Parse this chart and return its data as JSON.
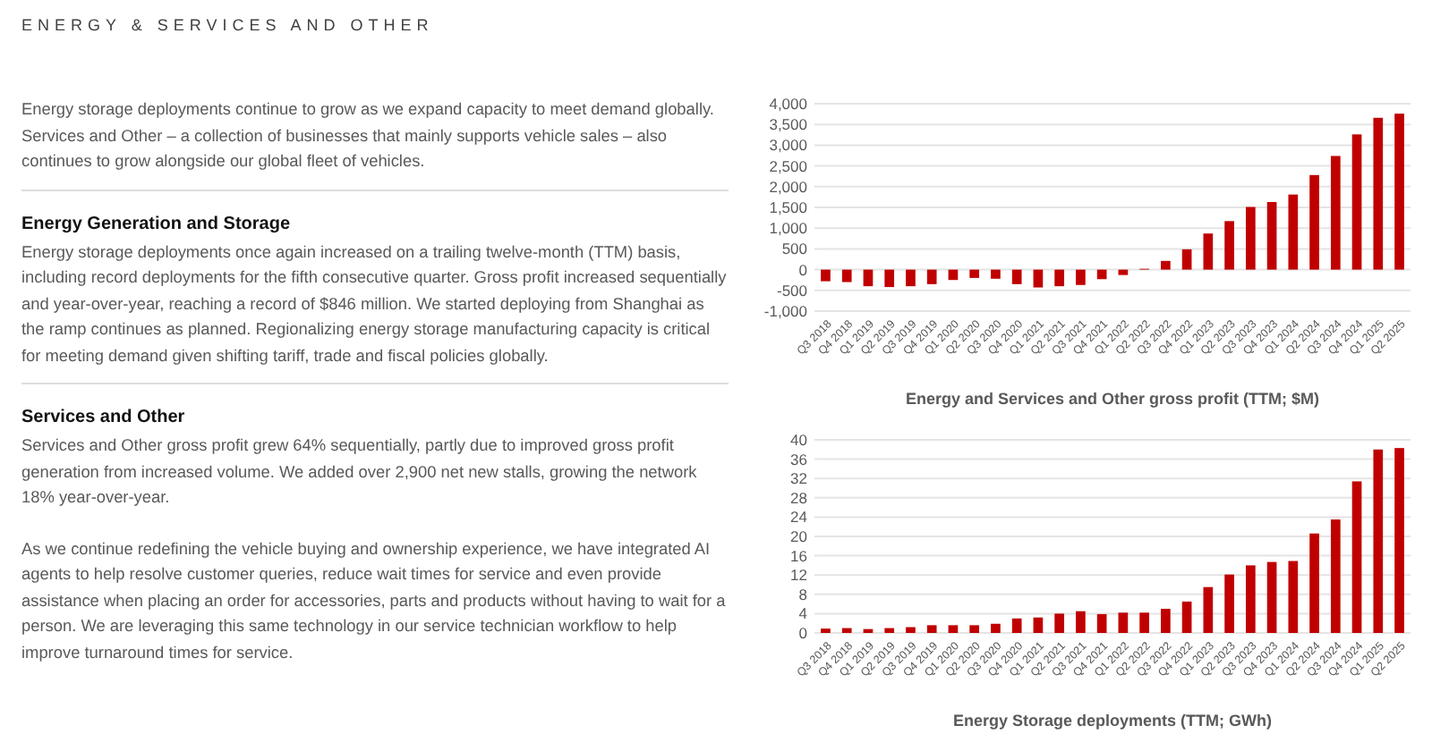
{
  "chart_data": [
    {
      "type": "other",
      "title": "ENERGY & SERVICES AND OTHER",
      "annotations": [
        "Energy storage deployments continue to grow as we expand capacity to meet demand globally. Services and Other – a collection of businesses that mainly supports vehicle sales – also continues to grow alongside our global fleet of vehicles.",
        "Energy Generation and Storage",
        "Energy storage deployments once again increased on a trailing twelve-month (TTM) basis, including record deployments for the fifth consecutive quarter. Gross profit increased sequentially and year-over-year, reaching a record of $846 million. We started deploying from Shanghai as the ramp continues as planned. Regionalizing energy storage manufacturing capacity is critical for meeting demand given shifting tariff, trade and fiscal policies globally.",
        "Services and Other",
        "Services and Other gross profit grew 64% sequentially, partly due to improved gross profit generation from increased volume. We added over 2,900 net new stalls, growing the network 18% year-over-year.",
        "As we continue redefining the vehicle buying and ownership experience, we have integrated AI agents to help resolve customer queries, reduce wait times for service and even provide assistance when placing an order for accessories, parts and products without having to wait for a person. We are leveraging this same technology in our service technician workflow to help improve turnaround times for service."
      ]
    },
    {
      "type": "bar",
      "title": "Energy and Services and Other gross profit (TTM; $M)",
      "categories": [
        "Q3 2018",
        "Q4 2018",
        "Q1 2019",
        "Q2 2019",
        "Q3 2019",
        "Q4 2019",
        "Q1 2020",
        "Q2 2020",
        "Q3 2020",
        "Q4 2020",
        "Q1 2021",
        "Q2 2021",
        "Q3 2021",
        "Q4 2021",
        "Q1 2022",
        "Q2 2022",
        "Q3 2022",
        "Q4 2022",
        "Q1 2023",
        "Q2 2023",
        "Q3 2023",
        "Q4 2023",
        "Q1 2024",
        "Q2 2024",
        "Q3 2024",
        "Q4 2024",
        "Q1 2025",
        "Q2 2025"
      ],
      "values": [
        -280,
        -300,
        -400,
        -420,
        -400,
        -350,
        -250,
        -200,
        -220,
        -350,
        -430,
        -400,
        -370,
        -230,
        -130,
        20,
        210,
        490,
        870,
        1170,
        1510,
        1630,
        1810,
        2280,
        2740,
        3260,
        3660,
        3760
      ],
      "color": "#c00000",
      "ylim": [
        -1000,
        4000
      ],
      "yticks": [
        {
          "value": -1000,
          "label": "-1,000"
        },
        -500,
        0,
        500,
        {
          "value": 1000,
          "label": "1,000"
        },
        {
          "value": 1500,
          "label": "1,500"
        },
        {
          "value": 2000,
          "label": "2,000"
        },
        {
          "value": 2500,
          "label": "2,500"
        },
        {
          "value": 3000,
          "label": "3,000"
        },
        {
          "value": 3500,
          "label": "3,500"
        },
        {
          "value": 4000,
          "label": "4,000"
        }
      ],
      "grid": "y"
    },
    {
      "type": "bar",
      "title": "Energy Storage deployments (TTM; GWh)",
      "categories": [
        "Q3 2018",
        "Q4 2018",
        "Q1 2019",
        "Q2 2019",
        "Q3 2019",
        "Q4 2019",
        "Q1 2020",
        "Q2 2020",
        "Q3 2020",
        "Q4 2020",
        "Q1 2021",
        "Q2 2021",
        "Q3 2021",
        "Q4 2021",
        "Q1 2022",
        "Q2 2022",
        "Q3 2022",
        "Q4 2022",
        "Q1 2023",
        "Q2 2023",
        "Q3 2023",
        "Q4 2023",
        "Q1 2024",
        "Q2 2024",
        "Q3 2024",
        "Q4 2024",
        "Q1 2025",
        "Q2 2025"
      ],
      "values": [
        0.9,
        1.0,
        0.8,
        1.0,
        1.2,
        1.6,
        1.6,
        1.6,
        1.9,
        3.0,
        3.2,
        4.0,
        4.5,
        3.9,
        4.2,
        4.2,
        5.0,
        6.5,
        9.5,
        12.1,
        14.0,
        14.7,
        14.9,
        20.6,
        23.5,
        31.4,
        38.0,
        38.3
      ],
      "color": "#c00000",
      "ylim": [
        0,
        40
      ],
      "yticks": [
        0,
        4,
        8,
        12,
        16,
        20,
        24,
        28,
        32,
        36,
        40
      ],
      "grid": "y"
    }
  ]
}
